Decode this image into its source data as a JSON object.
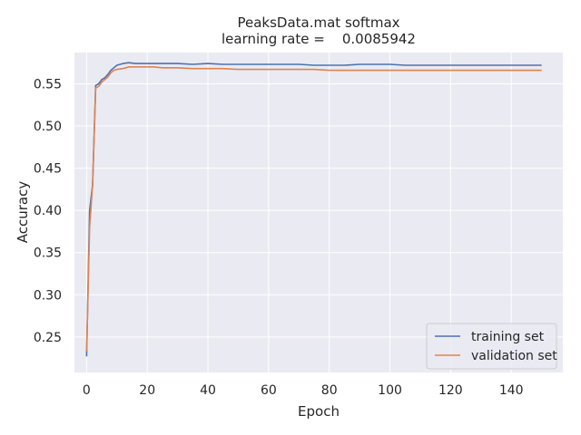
{
  "chart_data": {
    "type": "line",
    "title": "PeaksData.mat softmax",
    "subtitle": "learning rate =    0.0085942",
    "xlabel": "Epoch",
    "ylabel": "Accuracy",
    "xlim": [
      -4,
      157
    ],
    "ylim": [
      0.208,
      0.587
    ],
    "xticks": [
      0,
      20,
      40,
      60,
      80,
      100,
      120,
      140
    ],
    "xtick_labels": [
      "0",
      "20",
      "40",
      "60",
      "80",
      "100",
      "120",
      "140"
    ],
    "yticks": [
      0.25,
      0.3,
      0.35,
      0.4,
      0.45,
      0.5,
      0.55
    ],
    "ytick_labels": [
      "0.25",
      "0.30",
      "0.35",
      "0.40",
      "0.45",
      "0.50",
      "0.55"
    ],
    "grid": true,
    "legend_position": "lower-right",
    "colors": {
      "background": "#eaeaf2",
      "grid": "#ffffff",
      "training": "#4c72b0",
      "validation": "#dd8452"
    },
    "series": [
      {
        "name": "training set",
        "x": [
          0,
          1,
          2,
          3,
          4,
          5,
          6,
          7,
          8,
          9,
          10,
          12,
          14,
          16,
          18,
          20,
          22,
          25,
          30,
          35,
          40,
          45,
          50,
          55,
          60,
          65,
          70,
          75,
          80,
          85,
          90,
          95,
          100,
          105,
          110,
          115,
          120,
          125,
          130,
          135,
          140,
          145,
          150
        ],
        "y": [
          0.227,
          0.4,
          0.43,
          0.548,
          0.55,
          0.555,
          0.557,
          0.561,
          0.566,
          0.569,
          0.572,
          0.574,
          0.575,
          0.574,
          0.574,
          0.574,
          0.574,
          0.574,
          0.574,
          0.573,
          0.574,
          0.573,
          0.573,
          0.573,
          0.573,
          0.573,
          0.573,
          0.572,
          0.572,
          0.572,
          0.573,
          0.573,
          0.573,
          0.572,
          0.572,
          0.572,
          0.572,
          0.572,
          0.572,
          0.572,
          0.572,
          0.572,
          0.572
        ]
      },
      {
        "name": "validation set",
        "x": [
          0,
          1,
          2,
          3,
          4,
          5,
          6,
          7,
          8,
          9,
          10,
          12,
          14,
          16,
          18,
          20,
          22,
          25,
          30,
          35,
          40,
          45,
          50,
          55,
          60,
          65,
          70,
          75,
          80,
          85,
          90,
          95,
          100,
          105,
          110,
          115,
          120,
          125,
          130,
          135,
          140,
          145,
          150
        ],
        "y": [
          0.233,
          0.38,
          0.43,
          0.545,
          0.547,
          0.552,
          0.555,
          0.558,
          0.563,
          0.566,
          0.567,
          0.568,
          0.57,
          0.57,
          0.57,
          0.57,
          0.57,
          0.569,
          0.569,
          0.568,
          0.568,
          0.568,
          0.567,
          0.567,
          0.567,
          0.567,
          0.567,
          0.567,
          0.566,
          0.566,
          0.566,
          0.566,
          0.566,
          0.566,
          0.566,
          0.566,
          0.566,
          0.566,
          0.566,
          0.566,
          0.566,
          0.566,
          0.566
        ]
      }
    ]
  }
}
